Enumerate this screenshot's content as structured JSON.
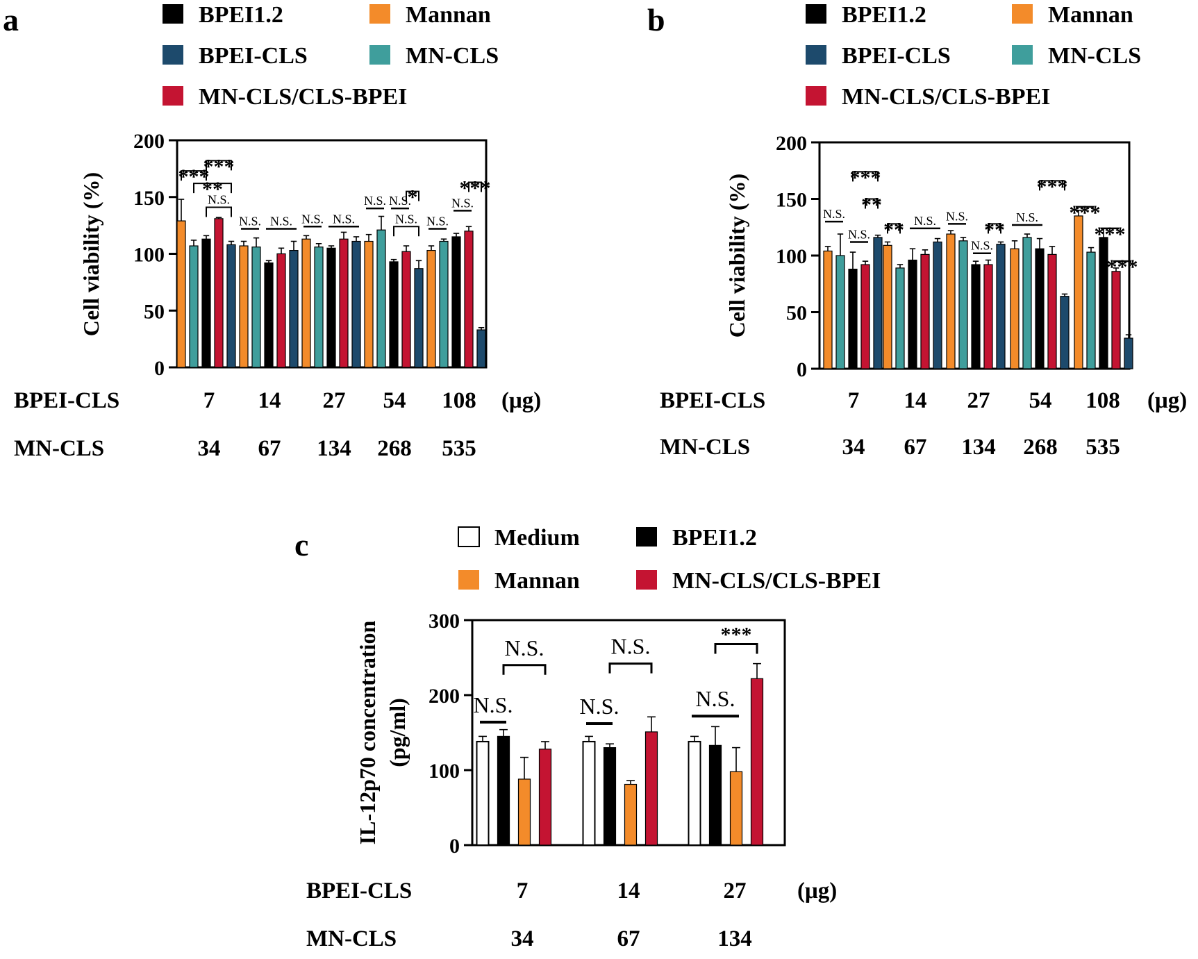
{
  "colors": {
    "BPEI1.2": "#000000",
    "Mannan": "#f38b2a",
    "BPEI-CLS": "#1d4a6c",
    "MN-CLS": "#3f9e9c",
    "MN-CLS/CLS-BPEI": "#c41432",
    "Medium": "#ffffff"
  },
  "chart_data": [
    {
      "panel": "a",
      "type": "bar",
      "ylabel": "Cell viability (%)",
      "ylim": [
        0,
        200
      ],
      "yticks": [
        "0",
        "50",
        "100",
        "150",
        "200"
      ],
      "legend": [
        "BPEI1.2",
        "Mannan",
        "BPEI-CLS",
        "MN-CLS",
        "MN-CLS/CLS-BPEI"
      ],
      "legend_position": "top",
      "x_rows": [
        {
          "label": "BPEI-CLS",
          "values": [
            "7",
            "14",
            "27",
            "54",
            "108"
          ],
          "unit": "(μg)"
        },
        {
          "label": "MN-CLS",
          "values": [
            "34",
            "67",
            "134",
            "268",
            "535"
          ],
          "unit": ""
        }
      ],
      "groups": [
        {
          "bars": [
            {
              "series": "Mannan",
              "value": 129,
              "error": 19
            },
            {
              "series": "MN-CLS",
              "value": 107,
              "error": 5
            },
            {
              "series": "BPEI1.2",
              "value": 113,
              "error": 3
            },
            {
              "series": "MN-CLS/CLS-BPEI",
              "value": 131,
              "error": 1
            },
            {
              "series": "BPEI-CLS",
              "value": 108,
              "error": 3
            }
          ]
        },
        {
          "bars": [
            {
              "series": "Mannan",
              "value": 107,
              "error": 4
            },
            {
              "series": "MN-CLS",
              "value": 106,
              "error": 8
            },
            {
              "series": "BPEI1.2",
              "value": 92,
              "error": 2
            },
            {
              "series": "MN-CLS/CLS-BPEI",
              "value": 100,
              "error": 5
            },
            {
              "series": "BPEI-CLS",
              "value": 103,
              "error": 8
            }
          ]
        },
        {
          "bars": [
            {
              "series": "Mannan",
              "value": 113,
              "error": 3
            },
            {
              "series": "MN-CLS",
              "value": 106,
              "error": 3
            },
            {
              "series": "BPEI1.2",
              "value": 105,
              "error": 2
            },
            {
              "series": "MN-CLS/CLS-BPEI",
              "value": 113,
              "error": 6
            },
            {
              "series": "BPEI-CLS",
              "value": 111,
              "error": 4
            }
          ]
        },
        {
          "bars": [
            {
              "series": "Mannan",
              "value": 111,
              "error": 6
            },
            {
              "series": "MN-CLS",
              "value": 121,
              "error": 12
            },
            {
              "series": "BPEI1.2",
              "value": 93,
              "error": 2
            },
            {
              "series": "MN-CLS/CLS-BPEI",
              "value": 102,
              "error": 5
            },
            {
              "series": "BPEI-CLS",
              "value": 87,
              "error": 7
            }
          ]
        },
        {
          "bars": [
            {
              "series": "Mannan",
              "value": 103,
              "error": 4
            },
            {
              "series": "MN-CLS",
              "value": 111,
              "error": 2
            },
            {
              "series": "BPEI1.2",
              "value": 115,
              "error": 3
            },
            {
              "series": "MN-CLS/CLS-BPEI",
              "value": 120,
              "error": 4
            },
            {
              "series": "BPEI-CLS",
              "value": 33,
              "error": 2
            }
          ]
        }
      ],
      "significance": [
        {
          "group": 0,
          "from": 0,
          "to": 2,
          "y": 173,
          "label": "***",
          "style": "bracket"
        },
        {
          "group": 0,
          "from": 2,
          "to": 4,
          "y": 182,
          "label": "***",
          "style": "bracket"
        },
        {
          "group": 0,
          "from": 1,
          "to": 4,
          "y": 162,
          "label": "**",
          "style": "bracket"
        },
        {
          "group": 0,
          "from": 2,
          "to": 4,
          "y": 141,
          "label": "N.S.",
          "style": "bracket"
        },
        {
          "group": 1,
          "from": 0,
          "to": 1,
          "y": 122,
          "label": "N.S.",
          "style": "line"
        },
        {
          "group": 1,
          "from": 2,
          "to": 4,
          "y": 122,
          "label": "N.S.",
          "style": "line"
        },
        {
          "group": 2,
          "from": 0,
          "to": 1,
          "y": 124,
          "label": "N.S.",
          "style": "line"
        },
        {
          "group": 2,
          "from": 2,
          "to": 4,
          "y": 124,
          "label": "N.S.",
          "style": "line"
        },
        {
          "group": 3,
          "from": 0,
          "to": 1,
          "y": 140,
          "label": "N.S.",
          "style": "line"
        },
        {
          "group": 3,
          "from": 2,
          "to": 3,
          "y": 140,
          "label": "N.S.",
          "style": "line"
        },
        {
          "group": 3,
          "from": 3,
          "to": 4,
          "y": 155,
          "label": "*",
          "style": "bracket"
        },
        {
          "group": 3,
          "from": 2,
          "to": 4,
          "y": 124,
          "label": "N.S.",
          "style": "bracket"
        },
        {
          "group": 4,
          "from": 0,
          "to": 1,
          "y": 122,
          "label": "N.S.",
          "style": "line"
        },
        {
          "group": 4,
          "from": 2,
          "to": 3,
          "y": 138,
          "label": "N.S.",
          "style": "line"
        },
        {
          "group": 4,
          "from": 3,
          "to": 4,
          "y": 163,
          "label": "***",
          "style": "bracket"
        }
      ]
    },
    {
      "panel": "b",
      "type": "bar",
      "ylabel": "Cell viability (%)",
      "ylim": [
        0,
        200
      ],
      "yticks": [
        "0",
        "50",
        "100",
        "150",
        "200"
      ],
      "legend": [
        "BPEI1.2",
        "Mannan",
        "BPEI-CLS",
        "MN-CLS",
        "MN-CLS/CLS-BPEI"
      ],
      "legend_position": "top",
      "x_rows": [
        {
          "label": "BPEI-CLS",
          "values": [
            "7",
            "14",
            "27",
            "54",
            "108"
          ],
          "unit": "(μg)"
        },
        {
          "label": "MN-CLS",
          "values": [
            "34",
            "67",
            "134",
            "268",
            "535"
          ],
          "unit": ""
        }
      ],
      "groups": [
        {
          "bars": [
            {
              "series": "Mannan",
              "value": 104,
              "error": 4
            },
            {
              "series": "MN-CLS",
              "value": 100,
              "error": 19
            },
            {
              "series": "BPEI1.2",
              "value": 88,
              "error": 15
            },
            {
              "series": "MN-CLS/CLS-BPEI",
              "value": 92,
              "error": 3
            },
            {
              "series": "BPEI-CLS",
              "value": 116,
              "error": 2
            }
          ]
        },
        {
          "bars": [
            {
              "series": "Mannan",
              "value": 109,
              "error": 3
            },
            {
              "series": "MN-CLS",
              "value": 89,
              "error": 3
            },
            {
              "series": "BPEI1.2",
              "value": 96,
              "error": 10
            },
            {
              "series": "MN-CLS/CLS-BPEI",
              "value": 101,
              "error": 4
            },
            {
              "series": "BPEI-CLS",
              "value": 112,
              "error": 3
            }
          ]
        },
        {
          "bars": [
            {
              "series": "Mannan",
              "value": 119,
              "error": 3
            },
            {
              "series": "MN-CLS",
              "value": 113,
              "error": 3
            },
            {
              "series": "BPEI1.2",
              "value": 92,
              "error": 3
            },
            {
              "series": "MN-CLS/CLS-BPEI",
              "value": 92,
              "error": 4
            },
            {
              "series": "BPEI-CLS",
              "value": 110,
              "error": 2
            }
          ]
        },
        {
          "bars": [
            {
              "series": "Mannan",
              "value": 106,
              "error": 7
            },
            {
              "series": "MN-CLS",
              "value": 116,
              "error": 3
            },
            {
              "series": "BPEI1.2",
              "value": 106,
              "error": 9
            },
            {
              "series": "MN-CLS/CLS-BPEI",
              "value": 101,
              "error": 7
            },
            {
              "series": "BPEI-CLS",
              "value": 64,
              "error": 2
            }
          ]
        },
        {
          "bars": [
            {
              "series": "Mannan",
              "value": 135,
              "error": 5
            },
            {
              "series": "MN-CLS",
              "value": 103,
              "error": 4
            },
            {
              "series": "BPEI1.2",
              "value": 116,
              "error": 8
            },
            {
              "series": "MN-CLS/CLS-BPEI",
              "value": 86,
              "error": 3
            },
            {
              "series": "BPEI-CLS",
              "value": 27,
              "error": 3
            }
          ]
        }
      ],
      "significance": [
        {
          "group": 0,
          "from": 0,
          "to": 1,
          "y": 130,
          "label": "N.S.",
          "style": "line"
        },
        {
          "group": 0,
          "from": 2,
          "to": 4,
          "y": 174,
          "label": "***",
          "style": "bracket"
        },
        {
          "group": 0,
          "from": 3,
          "to": 4,
          "y": 150,
          "label": "**",
          "style": "bracket"
        },
        {
          "group": 0,
          "from": 2,
          "to": 3,
          "y": 112,
          "label": "N.S.",
          "style": "line"
        },
        {
          "group": 1,
          "from": 0,
          "to": 1,
          "y": 128,
          "label": "**",
          "style": "bracket"
        },
        {
          "group": 1,
          "from": 2,
          "to": 4,
          "y": 124,
          "label": "N.S.",
          "style": "line"
        },
        {
          "group": 2,
          "from": 0,
          "to": 1,
          "y": 128,
          "label": "N.S.",
          "style": "line"
        },
        {
          "group": 2,
          "from": 3,
          "to": 4,
          "y": 128,
          "label": "**",
          "style": "bracket"
        },
        {
          "group": 2,
          "from": 2,
          "to": 3,
          "y": 102,
          "label": "N.S.",
          "style": "line"
        },
        {
          "group": 3,
          "from": 0,
          "to": 2,
          "y": 127,
          "label": "N.S.",
          "style": "line"
        },
        {
          "group": 3,
          "from": 2,
          "to": 4,
          "y": 166,
          "label": "***",
          "style": "bracket"
        },
        {
          "group": 4,
          "from": 0,
          "to": 1,
          "y": 143,
          "label": "***",
          "style": "line"
        },
        {
          "group": 4,
          "from": 2,
          "to": 3,
          "y": 124,
          "label": "***",
          "style": "line"
        },
        {
          "group": 4,
          "from": 3,
          "to": 4,
          "y": 95,
          "label": "***",
          "style": "line"
        }
      ]
    },
    {
      "panel": "c",
      "type": "bar",
      "ylabel": "IL-12p70 concentration (pg/ml)",
      "ylabel_lines": [
        "IL-12p70 concentration",
        "(pg/ml)"
      ],
      "ylim": [
        0,
        300
      ],
      "yticks": [
        "0",
        "100",
        "200",
        "300"
      ],
      "legend": [
        "Medium",
        "BPEI1.2",
        "Mannan",
        "MN-CLS/CLS-BPEI"
      ],
      "legend_position": "top",
      "x_rows": [
        {
          "label": "BPEI-CLS",
          "values": [
            "7",
            "14",
            "27"
          ],
          "unit": "(μg)"
        },
        {
          "label": "MN-CLS",
          "values": [
            "34",
            "67",
            "134"
          ],
          "unit": ""
        }
      ],
      "groups": [
        {
          "bars": [
            {
              "series": "Medium",
              "value": 138,
              "error": 7
            },
            {
              "series": "BPEI1.2",
              "value": 145,
              "error": 9
            },
            {
              "series": "Mannan",
              "value": 88,
              "error": 29
            },
            {
              "series": "MN-CLS/CLS-BPEI",
              "value": 128,
              "error": 10
            }
          ]
        },
        {
          "bars": [
            {
              "series": "Medium",
              "value": 138,
              "error": 7
            },
            {
              "series": "BPEI1.2",
              "value": 130,
              "error": 5
            },
            {
              "series": "Mannan",
              "value": 81,
              "error": 5
            },
            {
              "series": "MN-CLS/CLS-BPEI",
              "value": 151,
              "error": 20
            }
          ]
        },
        {
          "bars": [
            {
              "series": "Medium",
              "value": 138,
              "error": 7
            },
            {
              "series": "BPEI1.2",
              "value": 133,
              "error": 25
            },
            {
              "series": "Mannan",
              "value": 98,
              "error": 32
            },
            {
              "series": "MN-CLS/CLS-BPEI",
              "value": 222,
              "error": 20
            }
          ]
        }
      ],
      "significance": [
        {
          "group": 0,
          "from": 0,
          "to": 1,
          "y": 164,
          "label": "N.S.",
          "style": "line"
        },
        {
          "group": 0,
          "from": 1,
          "to": 3,
          "y": 240,
          "label": "N.S.",
          "style": "bracket"
        },
        {
          "group": 1,
          "from": 0,
          "to": 1,
          "y": 162,
          "label": "N.S.",
          "style": "line"
        },
        {
          "group": 1,
          "from": 1,
          "to": 3,
          "y": 242,
          "label": "N.S.",
          "style": "bracket"
        },
        {
          "group": 2,
          "from": 0,
          "to": 2,
          "y": 172,
          "label": "N.S.",
          "style": "line"
        },
        {
          "group": 2,
          "from": 1,
          "to": 3,
          "y": 268,
          "label": "***",
          "style": "bracket"
        }
      ]
    }
  ]
}
